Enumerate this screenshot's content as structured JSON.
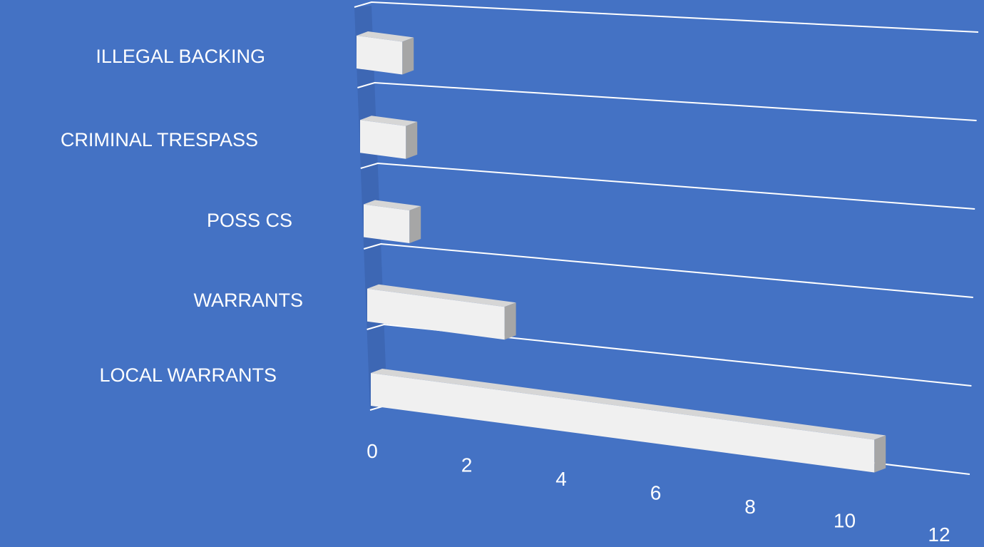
{
  "colors": {
    "background": "#4472c4",
    "bar_front": "#f0f0f0",
    "bar_top": "#d6d6d6",
    "bar_side": "#a6a6a6",
    "gridline": "#ffffff",
    "text": "#ffffff"
  },
  "chart_data": {
    "type": "bar",
    "orientation": "horizontal",
    "style": "3d-perspective",
    "title": "",
    "xlabel": "",
    "ylabel": "",
    "categories": [
      "ILLEGAL BACKING",
      "CRIMINAL TRESPASS",
      "POSS CS",
      "WARRANTS",
      "LOCAL WARRANTS"
    ],
    "series": [
      {
        "values": [
          1,
          1,
          1,
          3,
          11
        ]
      }
    ],
    "xlim": [
      0,
      12
    ],
    "x_ticks": [
      0,
      2,
      4,
      6,
      8,
      10,
      12
    ],
    "grid": true,
    "legend": "none"
  }
}
